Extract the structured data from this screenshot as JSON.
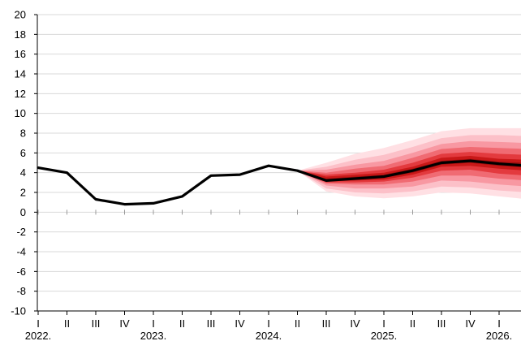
{
  "chart_data": {
    "type": "line",
    "title": "",
    "xlabel": "",
    "ylabel": "",
    "ylim": [
      -10,
      20
    ],
    "yticks": [
      20,
      18,
      16,
      14,
      12,
      10,
      8,
      6,
      4,
      2,
      0,
      -2,
      -4,
      -6,
      -8,
      -10
    ],
    "grid": "horizontal",
    "categories": [
      "I",
      "II",
      "III",
      "IV",
      "I",
      "II",
      "III",
      "IV",
      "I",
      "II",
      "III",
      "IV",
      "I",
      "II",
      "III",
      "IV",
      "I",
      "II"
    ],
    "years": [
      {
        "label": "2022.",
        "quarter_index": 0
      },
      {
        "label": "2023.",
        "quarter_index": 4
      },
      {
        "label": "2024.",
        "quarter_index": 8
      },
      {
        "label": "2025.",
        "quarter_index": 12
      },
      {
        "label": "2026.",
        "quarter_index": 16
      }
    ],
    "series": [
      {
        "values": [
          4.5,
          4.0,
          1.3,
          0.8,
          0.9,
          1.6,
          3.7,
          3.8,
          4.7,
          4.2,
          3.2,
          3.4,
          3.6,
          4.2,
          5.0,
          5.2,
          4.9,
          4.7
        ]
      }
    ],
    "fan": {
      "start_index": 9,
      "levels": [
        {
          "color": "#ffe0e4",
          "upper": [
            4.2,
            5.0,
            5.9,
            6.5,
            7.3,
            8.2,
            8.5,
            8.5,
            8.5
          ],
          "lower": [
            4.2,
            2.1,
            1.6,
            1.4,
            1.6,
            2.0,
            1.9,
            1.6,
            1.3
          ]
        },
        {
          "color": "#fcc0c8",
          "upper": [
            4.2,
            4.6,
            5.3,
            5.8,
            6.6,
            7.5,
            7.8,
            7.8,
            7.7
          ],
          "lower": [
            4.2,
            2.4,
            2.0,
            1.9,
            2.1,
            2.6,
            2.5,
            2.2,
            2.0
          ]
        },
        {
          "color": "#f898a2",
          "upper": [
            4.2,
            4.3,
            4.8,
            5.2,
            6.0,
            6.9,
            7.2,
            7.1,
            7.0
          ],
          "lower": [
            4.2,
            2.7,
            2.4,
            2.4,
            2.6,
            3.2,
            3.1,
            2.8,
            2.6
          ]
        },
        {
          "color": "#f06b73",
          "upper": [
            4.2,
            4.0,
            4.4,
            4.7,
            5.5,
            6.4,
            6.6,
            6.5,
            6.4
          ],
          "lower": [
            4.2,
            2.9,
            2.8,
            2.8,
            3.1,
            3.7,
            3.7,
            3.4,
            3.2
          ]
        },
        {
          "color": "#e33a3e",
          "upper": [
            4.2,
            3.8,
            4.0,
            4.3,
            5.0,
            5.9,
            6.1,
            5.9,
            5.8
          ],
          "lower": [
            4.2,
            3.0,
            3.0,
            3.1,
            3.5,
            4.2,
            4.3,
            3.9,
            3.7
          ]
        },
        {
          "color": "#c81818",
          "upper": [
            4.2,
            3.6,
            3.8,
            4.0,
            4.6,
            5.5,
            5.7,
            5.4,
            5.3
          ],
          "lower": [
            4.2,
            3.1,
            3.2,
            3.3,
            3.8,
            4.6,
            4.7,
            4.4,
            4.2
          ]
        },
        {
          "color": "#9e0e0e",
          "upper": [
            4.2,
            3.4,
            3.6,
            3.8,
            4.4,
            5.2,
            5.4,
            5.1,
            5.0
          ],
          "lower": [
            4.2,
            3.2,
            3.3,
            3.5,
            4.0,
            4.8,
            5.0,
            4.7,
            4.5
          ]
        }
      ]
    }
  }
}
